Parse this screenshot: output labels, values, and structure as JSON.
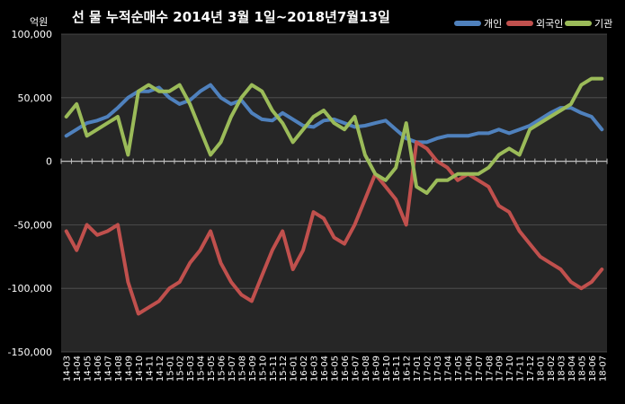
{
  "chart_data": {
    "type": "line",
    "title": "선 물 누적순매수 2014년 3월 1일~2018년7월13일",
    "ylabel": "억원",
    "xlabel": "",
    "ylim": [
      -150000,
      100000
    ],
    "yticks": [
      100000,
      50000,
      0,
      -50000,
      -100000,
      -150000
    ],
    "ytick_labels": [
      "100,000",
      "50,000",
      "0",
      "-50,000",
      "-100,000",
      "-150,000"
    ],
    "grid": true,
    "legend_position": "top-right",
    "categories": [
      "14-03",
      "14-04",
      "14-05",
      "14-06",
      "14-07",
      "14-08",
      "14-09",
      "14-10",
      "14-11",
      "14-12",
      "15-01",
      "15-02",
      "15-03",
      "15-04",
      "15-05",
      "15-06",
      "15-07",
      "15-08",
      "15-09",
      "15-10",
      "15-11",
      "15-12",
      "16-01",
      "16-02",
      "16-03",
      "16-04",
      "16-05",
      "16-06",
      "16-07",
      "16-08",
      "16-09",
      "16-10",
      "16-11",
      "16-12",
      "17-01",
      "17-02",
      "17-03",
      "17-04",
      "17-05",
      "17-06",
      "17-07",
      "17-08",
      "17-09",
      "17-10",
      "17-11",
      "17-12",
      "18-01",
      "18-02",
      "18-03",
      "18-04",
      "18-05",
      "18-06",
      "18-07"
    ],
    "series": [
      {
        "name": "개인",
        "color": "#4f81bd",
        "values": [
          20000,
          25000,
          30000,
          32000,
          35000,
          42000,
          50000,
          55000,
          55000,
          58000,
          50000,
          45000,
          48000,
          55000,
          60000,
          50000,
          45000,
          48000,
          38000,
          33000,
          32000,
          38000,
          33000,
          28000,
          27000,
          32000,
          33000,
          30000,
          27000,
          28000,
          30000,
          32000,
          25000,
          18000,
          15000,
          15000,
          18000,
          20000,
          20000,
          20000,
          22000,
          22000,
          25000,
          22000,
          25000,
          28000,
          33000,
          38000,
          42000,
          42000,
          38000,
          35000,
          25000
        ]
      },
      {
        "name": "외국인",
        "color": "#c0504d",
        "values": [
          -55000,
          -70000,
          -50000,
          -58000,
          -55000,
          -50000,
          -95000,
          -120000,
          -115000,
          -110000,
          -100000,
          -95000,
          -80000,
          -70000,
          -55000,
          -80000,
          -95000,
          -105000,
          -110000,
          -90000,
          -70000,
          -55000,
          -85000,
          -70000,
          -40000,
          -45000,
          -60000,
          -65000,
          -50000,
          -30000,
          -10000,
          -20000,
          -30000,
          -50000,
          15000,
          10000,
          0,
          -5000,
          -15000,
          -10000,
          -15000,
          -20000,
          -35000,
          -40000,
          -55000,
          -65000,
          -75000,
          -80000,
          -85000,
          -95000,
          -100000,
          -95000,
          -85000
        ]
      },
      {
        "name": "기관",
        "color": "#9bbb59",
        "values": [
          35000,
          45000,
          20000,
          25000,
          30000,
          35000,
          5000,
          55000,
          60000,
          55000,
          55000,
          60000,
          45000,
          25000,
          5000,
          15000,
          35000,
          50000,
          60000,
          55000,
          40000,
          30000,
          15000,
          25000,
          35000,
          40000,
          30000,
          25000,
          35000,
          5000,
          -10000,
          -15000,
          -5000,
          30000,
          -20000,
          -25000,
          -15000,
          -15000,
          -10000,
          -10000,
          -10000,
          -5000,
          5000,
          10000,
          5000,
          25000,
          30000,
          35000,
          40000,
          45000,
          60000,
          65000,
          65000
        ]
      }
    ]
  }
}
